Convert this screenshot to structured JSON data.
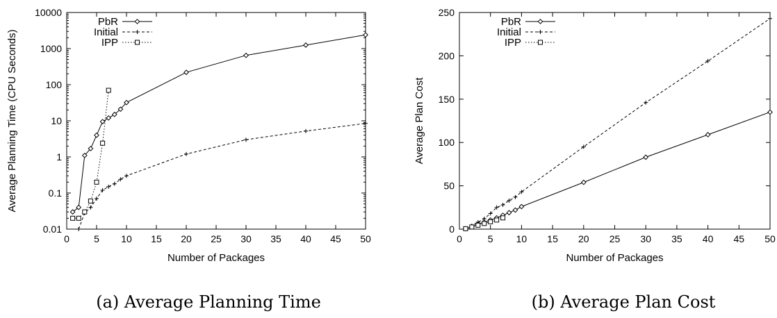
{
  "chart_data": [
    {
      "type": "line",
      "caption": "(a) Average Planning Time",
      "xlabel": "Number of Packages",
      "ylabel": "Average Planning Time (CPU Seconds)",
      "xlim": [
        0,
        50
      ],
      "ylim": [
        0.01,
        10000
      ],
      "yscale": "log",
      "xticks": [
        0,
        5,
        10,
        15,
        20,
        25,
        30,
        35,
        40,
        45,
        50
      ],
      "yticks": [
        0.01,
        0.1,
        1,
        10,
        100,
        1000,
        10000
      ],
      "ytick_labels": [
        "0.01",
        "0.1",
        "1",
        "10",
        "100",
        "1000",
        "10000"
      ],
      "legend_position": "top-left",
      "series": [
        {
          "name": "PbR",
          "style": "solid",
          "marker": "diamond",
          "points": [
            [
              1,
              0.03
            ],
            [
              2,
              0.04
            ],
            [
              3,
              1.1
            ],
            [
              4,
              1.7
            ],
            [
              5,
              4
            ],
            [
              6,
              9.5
            ],
            [
              7,
              12
            ],
            [
              8,
              15
            ],
            [
              9,
              21
            ],
            [
              10,
              32
            ],
            [
              20,
              220
            ],
            [
              30,
              650
            ],
            [
              40,
              1250
            ],
            [
              50,
              2400
            ]
          ]
        },
        {
          "name": "Initial",
          "style": "dashed",
          "marker": "plus",
          "points": [
            [
              2,
              0.01
            ],
            [
              3,
              0.028
            ],
            [
              4,
              0.04
            ],
            [
              5,
              0.07
            ],
            [
              6,
              0.12
            ],
            [
              7,
              0.15
            ],
            [
              8,
              0.18
            ],
            [
              9,
              0.24
            ],
            [
              10,
              0.3
            ],
            [
              20,
              1.2
            ],
            [
              30,
              3
            ],
            [
              40,
              5.2
            ],
            [
              50,
              8.5
            ]
          ]
        },
        {
          "name": "IPP",
          "style": "dotted",
          "marker": "square",
          "points": [
            [
              1,
              0.02
            ],
            [
              2,
              0.02
            ],
            [
              3,
              0.03
            ],
            [
              4,
              0.06
            ],
            [
              5,
              0.2
            ],
            [
              6,
              2.4
            ],
            [
              7,
              70
            ]
          ]
        }
      ]
    },
    {
      "type": "line",
      "caption": "(b) Average Plan Cost",
      "xlabel": "Number of Packages",
      "ylabel": "Average Plan Cost",
      "xlim": [
        0,
        50
      ],
      "ylim": [
        0,
        250
      ],
      "yscale": "linear",
      "xticks": [
        0,
        5,
        10,
        15,
        20,
        25,
        30,
        35,
        40,
        45,
        50
      ],
      "yticks": [
        0,
        50,
        100,
        150,
        200,
        250
      ],
      "ytick_labels": [
        "0",
        "50",
        "100",
        "150",
        "200",
        "250"
      ],
      "legend_position": "top-left",
      "series": [
        {
          "name": "PbR",
          "style": "solid",
          "marker": "diamond",
          "points": [
            [
              1,
              0.5
            ],
            [
              2,
              3
            ],
            [
              3,
              5.5
            ],
            [
              4,
              8
            ],
            [
              5,
              10.5
            ],
            [
              6,
              13
            ],
            [
              7,
              16
            ],
            [
              8,
              19
            ],
            [
              9,
              22
            ],
            [
              10,
              26
            ],
            [
              20,
              54
            ],
            [
              30,
              83
            ],
            [
              40,
              109
            ],
            [
              50,
              135
            ]
          ]
        },
        {
          "name": "Initial",
          "style": "dashed",
          "marker": "plus",
          "points": [
            [
              1,
              0.5
            ],
            [
              2,
              4
            ],
            [
              3,
              8
            ],
            [
              4,
              12
            ],
            [
              5,
              18
            ],
            [
              6,
              25
            ],
            [
              7,
              28
            ],
            [
              8,
              33
            ],
            [
              9,
              37
            ],
            [
              10,
              43
            ],
            [
              20,
              95
            ],
            [
              30,
              146
            ],
            [
              40,
              194
            ],
            [
              50,
              243
            ]
          ]
        },
        {
          "name": "IPP",
          "style": "dotted",
          "marker": "square",
          "points": [
            [
              1,
              0.5
            ],
            [
              2,
              2.5
            ],
            [
              3,
              4.5
            ],
            [
              4,
              6.5
            ],
            [
              5,
              8.5
            ],
            [
              6,
              10.5
            ],
            [
              7,
              13
            ]
          ]
        }
      ]
    }
  ]
}
